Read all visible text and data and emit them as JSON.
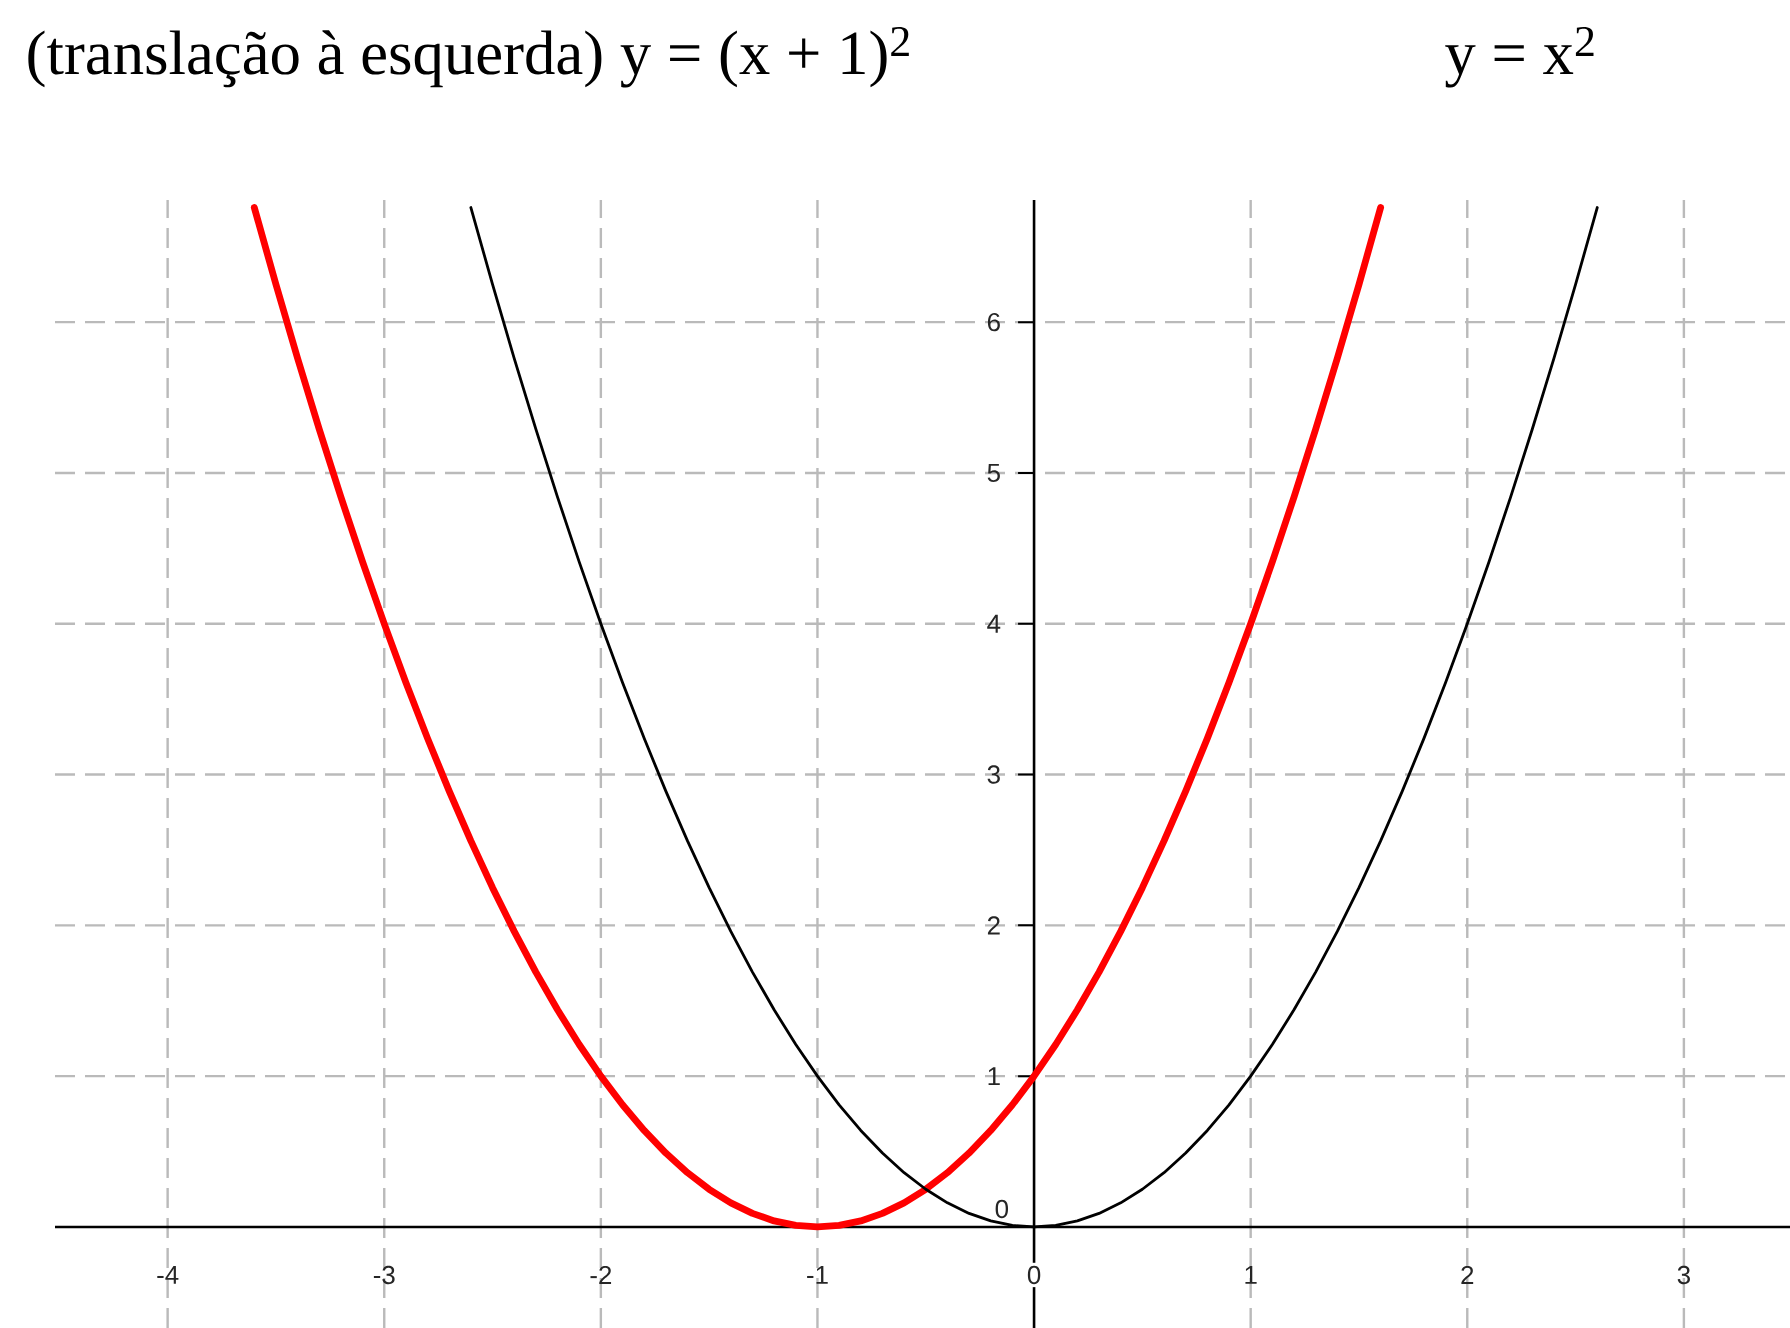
{
  "chart_data": {
    "type": "line",
    "annotations": [
      "(translação à esquerda) y = (x + 1)$^{2}$",
      "y = x$^{2}$"
    ],
    "series": [
      {
        "color": "#ff0000",
        "x": [
          -3.6,
          -3.5,
          -3.4,
          -3.3,
          -3.2,
          -3.1,
          -3,
          -2.9,
          -2.8,
          -2.7,
          -2.6,
          -2.5,
          -2.4,
          -2.3,
          -2.2,
          -2.1,
          -2,
          -1.9,
          -1.8,
          -1.7,
          -1.6,
          -1.5,
          -1.4,
          -1.3,
          -1.2,
          -1.1,
          -1,
          -0.9,
          -0.8,
          -0.7,
          -0.6,
          -0.5,
          -0.4,
          -0.3,
          -0.2,
          -0.1,
          0,
          0.1,
          0.2,
          0.3,
          0.4,
          0.5,
          0.6,
          0.7,
          0.8,
          0.9,
          1,
          1.1,
          1.2,
          1.3,
          1.4,
          1.5,
          1.6
        ],
        "values": [
          6.76,
          6.25,
          5.76,
          5.29,
          4.84,
          4.41,
          4,
          3.61,
          3.24,
          2.89,
          2.56,
          2.25,
          1.96,
          1.69,
          1.44,
          1.21,
          1,
          0.81,
          0.64,
          0.49,
          0.36,
          0.25,
          0.16,
          0.09,
          0.04,
          0.01,
          0,
          0.01,
          0.04,
          0.09,
          0.16,
          0.25,
          0.36,
          0.49,
          0.64,
          0.81,
          1,
          1.21,
          1.44,
          1.69,
          1.96,
          2.25,
          2.56,
          2.89,
          3.24,
          3.61,
          4,
          4.41,
          4.84,
          5.29,
          5.76,
          6.25,
          6.76
        ]
      },
      {
        "color": "#000000",
        "x": [
          -2.6,
          -2.5,
          -2.4,
          -2.3,
          -2.2,
          -2.1,
          -2,
          -1.9,
          -1.8,
          -1.7,
          -1.6,
          -1.5,
          -1.4,
          -1.3,
          -1.2,
          -1.1,
          -1,
          -0.9,
          -0.8,
          -0.7,
          -0.6,
          -0.5,
          -0.4,
          -0.3,
          -0.2,
          -0.1,
          0,
          0.1,
          0.2,
          0.3,
          0.4,
          0.5,
          0.6,
          0.7,
          0.8,
          0.9,
          1,
          1.1,
          1.2,
          1.3,
          1.4,
          1.5,
          1.6,
          1.7,
          1.8,
          1.9,
          2,
          2.1,
          2.2,
          2.3,
          2.4,
          2.5,
          2.6
        ],
        "values": [
          6.76,
          6.25,
          5.76,
          5.29,
          4.84,
          4.41,
          4,
          3.61,
          3.24,
          2.89,
          2.56,
          2.25,
          1.96,
          1.69,
          1.44,
          1.21,
          1,
          0.81,
          0.64,
          0.49,
          0.36,
          0.25,
          0.16,
          0.09,
          0.04,
          0.01,
          0,
          0.01,
          0.04,
          0.09,
          0.16,
          0.25,
          0.36,
          0.49,
          0.64,
          0.81,
          1,
          1.21,
          1.44,
          1.69,
          1.96,
          2.25,
          2.56,
          2.89,
          3.24,
          3.61,
          4,
          4.41,
          4.84,
          5.29,
          5.76,
          6.25,
          6.76
        ]
      }
    ],
    "xlim": [
      -4.52,
      3.49
    ],
    "ylim": [
      -0.67,
      6.81
    ],
    "xticks": [
      -4,
      -3,
      -2,
      -1,
      0,
      1,
      2,
      3
    ],
    "yticks": [
      0,
      1,
      2,
      3,
      4,
      5,
      6
    ],
    "grid": true,
    "marker": "none",
    "line_style": "solid"
  }
}
